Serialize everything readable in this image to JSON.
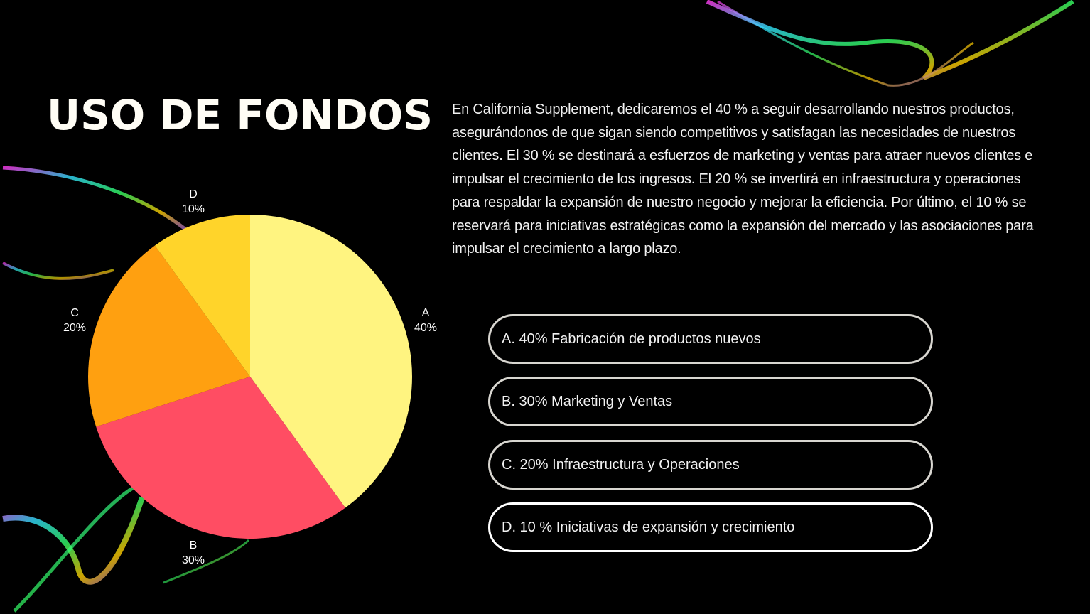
{
  "title": "USO DE FONDOS",
  "paragraph": "En California Supplement, dedicaremos el 40 % a seguir desarrollando nuestros productos, asegurándonos de que sigan siendo competitivos y satisfagan las necesidades de nuestros clientes. El 30 % se destinará a esfuerzos de marketing y ventas para atraer nuevos clientes e impulsar el crecimiento de los ingresos. El 20 % se invertirá en infraestructura y operaciones para respaldar la expansión de nuestro negocio y mejorar la eficiencia. Por último, el 10 % se reservará para iniciativas estratégicas como la expansión del mercado y las asociaciones para impulsar el crecimiento a largo plazo.",
  "legend_items": [
    "A. 40% Fabricación de productos nuevos",
    "B. 30% Marketing y Ventas",
    "C. 20% Infraestructura y Operaciones",
    "D. 10 % Iniciativas de expansión y crecimiento"
  ],
  "chart_data": {
    "type": "pie",
    "categories": [
      "A",
      "B",
      "C",
      "D"
    ],
    "values": [
      40,
      30,
      20,
      10
    ],
    "value_labels": [
      "40%",
      "30%",
      "20%",
      "10%"
    ],
    "colors": [
      "#FFF480",
      "#FF4D63",
      "#FFA010",
      "#FFD42A"
    ],
    "start": "top",
    "direction": "clockwise"
  }
}
